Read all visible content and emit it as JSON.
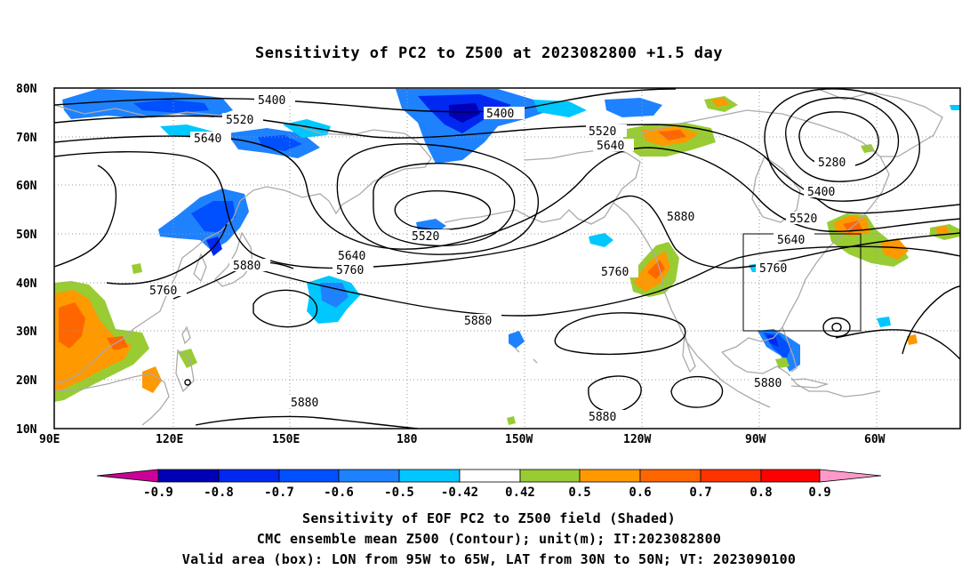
{
  "title": "Sensitivity of PC2 to Z500 at 2023082800 +1.5 day",
  "axes": {
    "lat_labels": [
      "80N",
      "70N",
      "60N",
      "50N",
      "40N",
      "30N",
      "20N",
      "10N"
    ],
    "lon_labels": [
      "90E",
      "120E",
      "150E",
      "180",
      "150W",
      "120W",
      "90W",
      "60W"
    ]
  },
  "colors": {
    "land_outline": "#aaaaaa",
    "contour": "#000000",
    "grid": "#999999",
    "bins": [
      "#cc0099",
      "#0000b4",
      "#0028f0",
      "#0050ff",
      "#1e82ff",
      "#00c8ff",
      "#ffffff",
      "#99cc33",
      "#ff9900",
      "#ff6600",
      "#ff3300",
      "#ff0000",
      "#ff99cc"
    ]
  },
  "colorbar": {
    "labels": [
      "-0.9",
      "-0.8",
      "-0.7",
      "-0.6",
      "-0.5",
      "-0.42",
      "0.42",
      "0.5",
      "0.6",
      "0.7",
      "0.8",
      "0.9"
    ]
  },
  "contour_labels": {
    "c5400a": "5400",
    "c5400b": "5400",
    "c5400c": "5400",
    "c5520a": "5520",
    "c5520b": "5520",
    "c5520c": "5520",
    "c5520d": "5520",
    "c5640a": "5640",
    "c5640b": "5640",
    "c5640c": "5640",
    "c5640d": "5640",
    "c5760a": "5760",
    "c5760b": "5760",
    "c5760c": "5760",
    "c5760d": "5760",
    "c5880a": "5880",
    "c5880b": "5880",
    "c5880c": "5880",
    "c5880d": "5880",
    "c5880e": "5880",
    "c5880f": "5880",
    "c5280": "5280"
  },
  "captions": {
    "line1": "Sensitivity of EOF PC2 to Z500 field (Shaded)",
    "line2": "CMC ensemble mean Z500 (Contour); unit(m); IT:2023082800",
    "line3": "Valid area (box): LON from 95W to 65W, LAT from 30N to 50N; VT: 2023090100"
  }
}
